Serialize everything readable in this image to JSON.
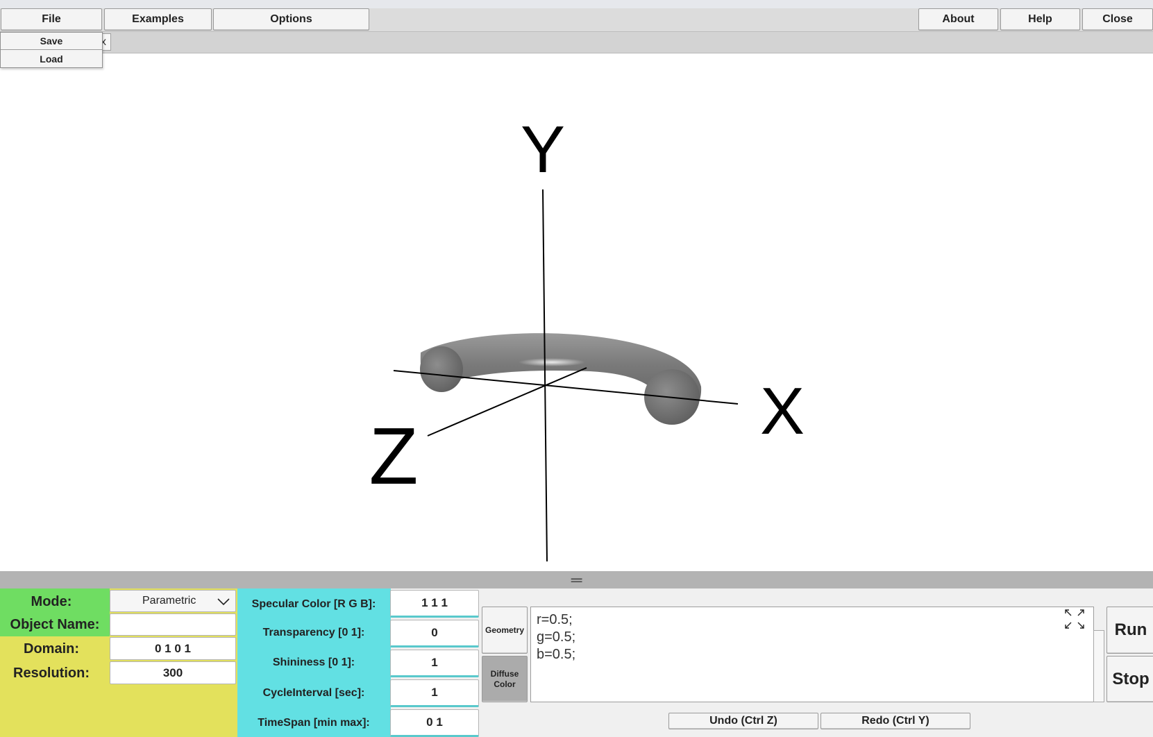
{
  "menubar": {
    "file": "File",
    "examples": "Examples",
    "options": "Options",
    "about": "About",
    "help": "Help",
    "close": "Close"
  },
  "file_menu": {
    "save": "Save",
    "load": "Load"
  },
  "tab": {
    "close_glyph": "x"
  },
  "axes": {
    "y": "Y",
    "x": "X",
    "z": "Z"
  },
  "object": {
    "color": "#7b7b7b"
  },
  "splitter": {
    "glyph": "═"
  },
  "left_panel": {
    "mode_label": "Mode:",
    "mode_value": "Parametric",
    "object_name_label": "Object Name:",
    "object_name_value": "",
    "domain_label": "Domain:",
    "domain_value": "0 1 0 1",
    "resolution_label": "Resolution:",
    "resolution_value": "300"
  },
  "material_panel": {
    "specular_label": "Specular Color [R G B]:",
    "specular_value": "1 1 1",
    "transparency_label": "Transparency [0 1]:",
    "transparency_value": "0",
    "shininess_label": "Shininess [0 1]:",
    "shininess_value": "1",
    "cycle_label": "CycleInterval [sec]:",
    "cycle_value": "1",
    "timespan_label": "TimeSpan [min max]:",
    "timespan_value": "0 1"
  },
  "editor_tabs": {
    "geometry": "Geometry",
    "diffuse_line1": "Diffuse",
    "diffuse_line2": "Color"
  },
  "editor": {
    "code": "r=0.5;\ng=0.5;\nb=0.5;"
  },
  "actions": {
    "run": "Run",
    "stop": "Stop",
    "undo": "Undo (Ctrl Z)",
    "redo": "Redo (Ctrl Y)"
  },
  "colors": {
    "yellow": "#e3e15c",
    "green": "#6fdd62",
    "cyan": "#62e0e3"
  }
}
